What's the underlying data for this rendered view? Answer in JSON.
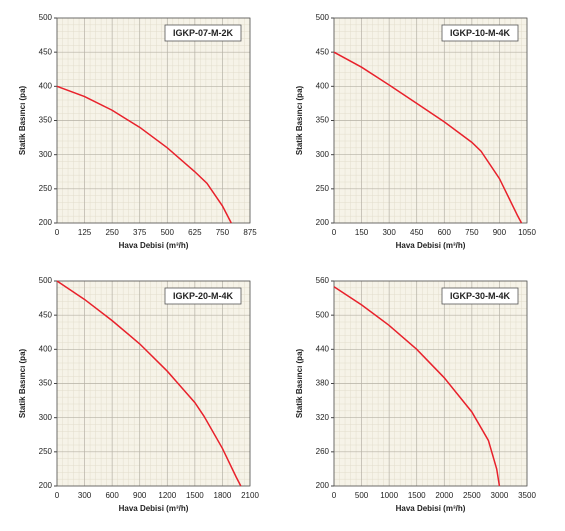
{
  "chart_data": [
    {
      "type": "line",
      "title": "IGKP-07-M-2K",
      "xlabel": "Hava Debisi (m³/h)",
      "ylabel": "Statik Basıncı (pa)",
      "color": "#e8212b",
      "grid": true,
      "x": [
        0,
        125,
        250,
        375,
        500,
        625,
        680,
        750,
        790
      ],
      "values": [
        400,
        385,
        365,
        340,
        310,
        275,
        258,
        225,
        200
      ],
      "xlim": [
        0,
        875
      ],
      "xticks": [
        0,
        125,
        250,
        375,
        500,
        625,
        750,
        875
      ],
      "ylim": [
        200,
        500
      ],
      "yticks": [
        200,
        250,
        300,
        350,
        400,
        450,
        500
      ]
    },
    {
      "type": "line",
      "title": "IGKP-10-M-4K",
      "xlabel": "Hava Debisi (m³/h)",
      "ylabel": "Statik Basıncı (pa)",
      "color": "#e8212b",
      "grid": true,
      "x": [
        0,
        150,
        300,
        450,
        600,
        750,
        800,
        900,
        1000,
        1020
      ],
      "values": [
        450,
        428,
        402,
        375,
        348,
        318,
        305,
        265,
        210,
        200
      ],
      "xlim": [
        0,
        1050
      ],
      "xticks": [
        0,
        150,
        300,
        450,
        600,
        750,
        900,
        1050
      ],
      "ylim": [
        200,
        500
      ],
      "yticks": [
        200,
        250,
        300,
        350,
        400,
        450,
        500
      ]
    },
    {
      "type": "line",
      "title": "IGKP-20-M-4K",
      "xlabel": "Hava Debisi (m³/h)",
      "ylabel": "Statik Basıncı (pa)",
      "color": "#e8212b",
      "grid": true,
      "x": [
        0,
        300,
        600,
        900,
        1200,
        1500,
        1600,
        1800,
        1950,
        2000
      ],
      "values": [
        500,
        473,
        442,
        408,
        368,
        322,
        302,
        255,
        213,
        200
      ],
      "xlim": [
        0,
        2100
      ],
      "xticks": [
        0,
        300,
        600,
        900,
        1200,
        1500,
        1800,
        2100
      ],
      "ylim": [
        200,
        500
      ],
      "yticks": [
        200,
        250,
        300,
        350,
        400,
        450,
        500
      ]
    },
    {
      "type": "line",
      "title": "IGKP-30-M-4K",
      "xlabel": "Hava Debisi (m³/h)",
      "ylabel": "Statik Basıncı (pa)",
      "color": "#e8212b",
      "grid": true,
      "x": [
        0,
        500,
        1000,
        1500,
        2000,
        2500,
        2800,
        2950,
        3000
      ],
      "values": [
        550,
        518,
        482,
        440,
        390,
        330,
        280,
        230,
        200
      ],
      "xlim": [
        0,
        3500
      ],
      "xticks": [
        0,
        500,
        1000,
        1500,
        2000,
        2500,
        3000,
        3500
      ],
      "ylim": [
        200,
        560
      ],
      "yticks": [
        200,
        260,
        320,
        380,
        440,
        500,
        560
      ]
    }
  ]
}
